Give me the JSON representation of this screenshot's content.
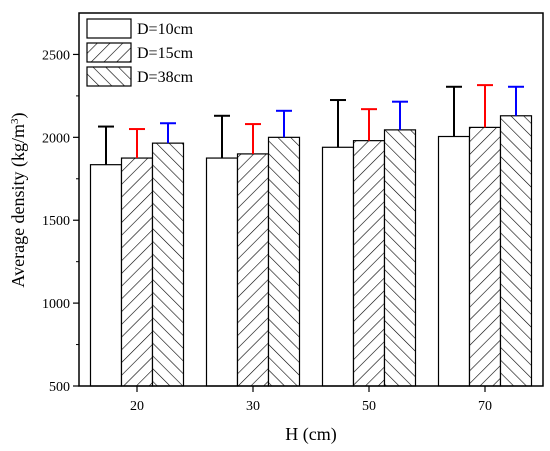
{
  "chart_data": {
    "type": "bar",
    "xlabel": "H (cm)",
    "ylabel": "Average density (kg/m",
    "ylabel_sup": "3",
    "ylabel_close": ")",
    "categories": [
      "20",
      "30",
      "50",
      "70"
    ],
    "ylim": [
      500,
      2750
    ],
    "yticks": [
      "500",
      "1000",
      "1500",
      "2000",
      "2500"
    ],
    "legend_position": "top-left",
    "series": [
      {
        "name": "D=10cm",
        "pattern": "none",
        "values": [
          1835,
          1875,
          1940,
          2005
        ],
        "errors": [
          230,
          255,
          285,
          300
        ],
        "error_color": "#000000"
      },
      {
        "name": "D=15cm",
        "pattern": "forward-hatch",
        "values": [
          1875,
          1900,
          1980,
          2060
        ],
        "errors": [
          175,
          180,
          190,
          255
        ],
        "error_color": "#ff0000"
      },
      {
        "name": "D=38cm",
        "pattern": "back-hatch",
        "values": [
          1965,
          2000,
          2045,
          2130
        ],
        "errors": [
          120,
          160,
          170,
          175
        ],
        "error_color": "#0000ff"
      }
    ]
  }
}
